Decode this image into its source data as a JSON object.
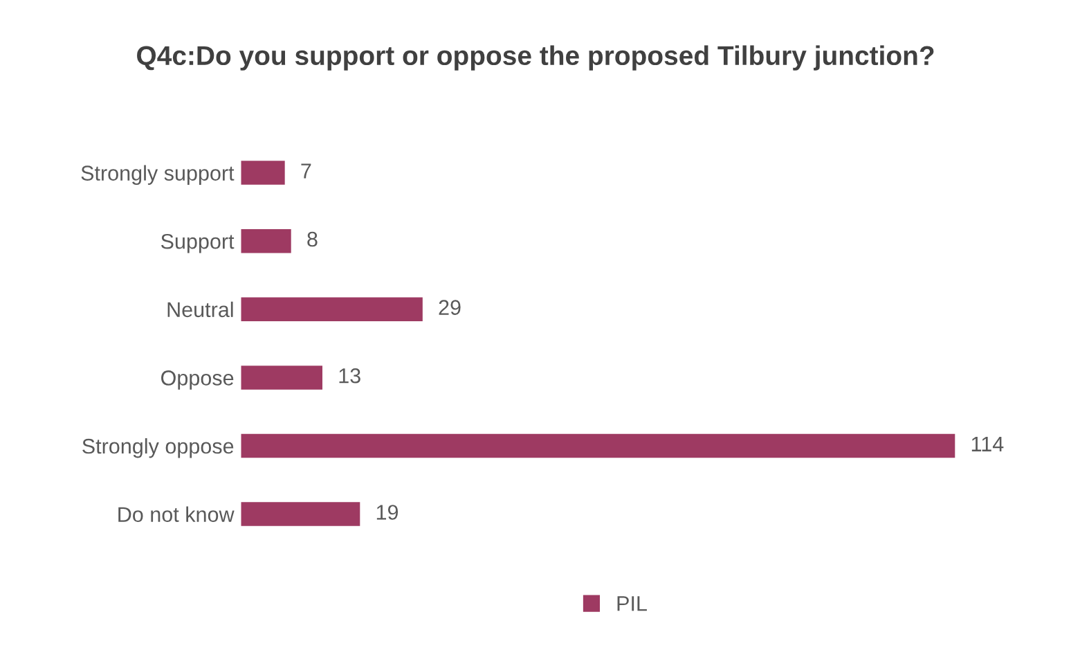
{
  "chart_data": {
    "type": "bar",
    "orientation": "horizontal",
    "title": "Q4c:Do you support or oppose the proposed Tilbury junction?",
    "categories": [
      "Strongly support",
      "Support",
      "Neutral",
      "Oppose",
      "Strongly oppose",
      "Do not know"
    ],
    "series": [
      {
        "name": "PIL",
        "color": "#9e3a62",
        "values": [
          7,
          8,
          29,
          13,
          114,
          19
        ]
      }
    ],
    "data_labels": true,
    "legend": "bottom",
    "grid": false
  }
}
